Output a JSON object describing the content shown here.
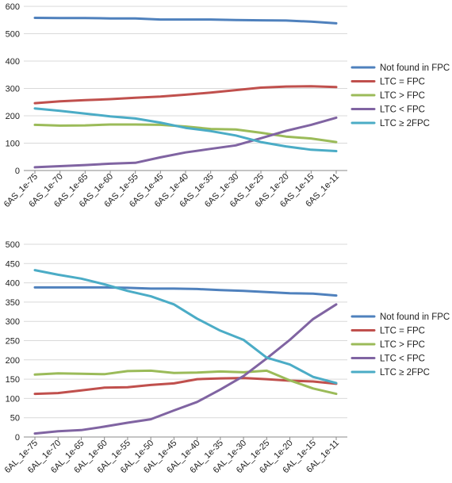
{
  "colors": {
    "not_found": "#4F81BD",
    "ltc_eq": "#C0504D",
    "ltc_gt": "#9BBB59",
    "ltc_lt": "#8064A2",
    "ltc_ge2": "#4BACC6"
  },
  "chart_data": [
    {
      "type": "line",
      "categories": [
        "6AS_1e-75",
        "6AS_1e-70",
        "6AS_1e-65",
        "6AS_1e-60",
        "6AS_1e-55",
        "6AS_1e-45",
        "6AS_1e-40",
        "6AS_1e-35",
        "6AS_1e-30",
        "6AS_1e-25",
        "6AS_1e-20",
        "6AS_1e-15",
        "6AS_1e-11"
      ],
      "ylim": [
        0,
        600
      ],
      "yticks": [
        0,
        100,
        200,
        300,
        400,
        500,
        600
      ],
      "grid": true,
      "legend": "right",
      "series": [
        {
          "name": "Not found in FPC",
          "color_key": "not_found",
          "values": [
            558,
            557,
            557,
            556,
            556,
            552,
            552,
            552,
            550,
            549,
            548,
            544,
            538
          ]
        },
        {
          "name": "LTC = FPC",
          "color_key": "ltc_eq",
          "values": [
            246,
            253,
            257,
            261,
            266,
            270,
            277,
            285,
            294,
            303,
            307,
            308,
            305
          ]
        },
        {
          "name": "LTC > FPC",
          "color_key": "ltc_gt",
          "values": [
            167,
            164,
            165,
            168,
            168,
            167,
            161,
            152,
            150,
            138,
            124,
            117,
            104
          ]
        },
        {
          "name": "LTC < FPC",
          "color_key": "ltc_lt",
          "values": [
            12,
            16,
            20,
            25,
            28,
            48,
            66,
            79,
            92,
            118,
            145,
            167,
            193
          ]
        },
        {
          "name": "LTC ≥ 2FPC",
          "color_key": "ltc_ge2",
          "values": [
            227,
            218,
            208,
            198,
            190,
            175,
            156,
            144,
            128,
            104,
            88,
            76,
            71
          ]
        }
      ]
    },
    {
      "type": "line",
      "categories": [
        "6AL_1e-75",
        "6AL_1e-70",
        "6AL_1e-65",
        "6AL_1e-60",
        "6AL_1e-55",
        "6AL_1e-50",
        "6AL_1e-45",
        "6AL_1e-40",
        "6AL_1e-35",
        "6AL_1e-30",
        "6AL_1e-25",
        "6AL_1e-20",
        "6AL_1e-15",
        "6AL_1e-11"
      ],
      "ylim": [
        0,
        500
      ],
      "yticks": [
        0,
        50,
        100,
        150,
        200,
        250,
        300,
        350,
        400,
        450,
        500
      ],
      "grid": true,
      "legend": "right",
      "series": [
        {
          "name": "Not found in FPC",
          "color_key": "not_found",
          "values": [
            388,
            388,
            388,
            388,
            387,
            385,
            385,
            384,
            381,
            379,
            376,
            373,
            372,
            367
          ]
        },
        {
          "name": "LTC = FPC",
          "color_key": "ltc_eq",
          "values": [
            112,
            114,
            121,
            128,
            129,
            135,
            139,
            150,
            152,
            153,
            150,
            146,
            144,
            138
          ]
        },
        {
          "name": "LTC > FPC",
          "color_key": "ltc_gt",
          "values": [
            162,
            165,
            164,
            163,
            171,
            172,
            166,
            167,
            170,
            168,
            172,
            147,
            126,
            112
          ]
        },
        {
          "name": "LTC < FPC",
          "color_key": "ltc_lt",
          "values": [
            9,
            15,
            18,
            27,
            37,
            46,
            69,
            91,
            123,
            158,
            204,
            252,
            306,
            344
          ]
        },
        {
          "name": "LTC ≥ 2FPC",
          "color_key": "ltc_ge2",
          "values": [
            433,
            421,
            411,
            396,
            379,
            365,
            344,
            307,
            276,
            252,
            206,
            188,
            156,
            140
          ]
        }
      ]
    }
  ]
}
